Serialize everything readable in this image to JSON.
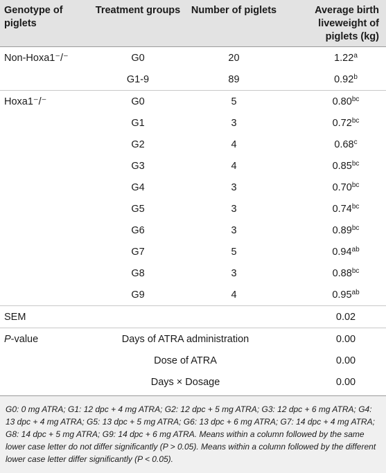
{
  "headers": {
    "genotype": "Genotype of piglets",
    "treatment": "Treatment groups",
    "number": "Number of piglets",
    "weight": "Average birth liveweight of piglets (kg)"
  },
  "rows": [
    {
      "genotype": "Non-Hoxa1⁻/⁻",
      "group": "G0",
      "n": "20",
      "w": "1.22",
      "sup": "a"
    },
    {
      "genotype": "",
      "group": "G1-9",
      "n": "89",
      "w": "0.92",
      "sup": "b"
    },
    {
      "genotype": "Hoxa1⁻/⁻",
      "group": "G0",
      "n": "5",
      "w": "0.80",
      "sup": "bc"
    },
    {
      "genotype": "",
      "group": "G1",
      "n": "3",
      "w": "0.72",
      "sup": "bc"
    },
    {
      "genotype": "",
      "group": "G2",
      "n": "4",
      "w": "0.68",
      "sup": "c"
    },
    {
      "genotype": "",
      "group": "G3",
      "n": "4",
      "w": "0.85",
      "sup": "bc"
    },
    {
      "genotype": "",
      "group": "G4",
      "n": "3",
      "w": "0.70",
      "sup": "bc"
    },
    {
      "genotype": "",
      "group": "G5",
      "n": "3",
      "w": "0.74",
      "sup": "bc"
    },
    {
      "genotype": "",
      "group": "G6",
      "n": "3",
      "w": "0.89",
      "sup": "bc"
    },
    {
      "genotype": "",
      "group": "G7",
      "n": "5",
      "w": "0.94",
      "sup": "ab"
    },
    {
      "genotype": "",
      "group": "G8",
      "n": "3",
      "w": "0.88",
      "sup": "bc"
    },
    {
      "genotype": "",
      "group": "G9",
      "n": "4",
      "w": "0.95",
      "sup": "ab"
    }
  ],
  "sem": {
    "label": "SEM",
    "value": "0.02"
  },
  "pvalue": {
    "label_italic": "P",
    "label_rest": "-value",
    "items": [
      {
        "label": "Days of ATRA administration",
        "value": "0.00"
      },
      {
        "label": "Dose of ATRA",
        "value": "0.00"
      },
      {
        "label": "Days × Dosage",
        "value": "0.00"
      }
    ]
  },
  "footnote": "G0: 0 mg ATRA; G1: 12 dpc + 4 mg ATRA; G2: 12 dpc + 5 mg ATRA; G3: 12 dpc + 6 mg ATRA; G4: 13 dpc + 4 mg ATRA; G5: 13 dpc + 5 mg ATRA; G6: 13 dpc + 6 mg ATRA; G7: 14 dpc + 4 mg ATRA; G8: 14 dpc + 5 mg ATRA; G9: 14 dpc + 6 mg ATRA. Means within a column followed by the same lower case letter do not differ significantly (P > 0.05). Means within a column followed by the different lower case letter differ significantly (P < 0.05)."
}
